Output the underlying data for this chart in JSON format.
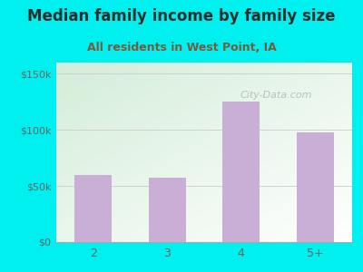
{
  "title": "Median family income by family size",
  "subtitle": "All residents in West Point, IA",
  "categories": [
    "2",
    "3",
    "4",
    "5+"
  ],
  "values": [
    60000,
    57000,
    125000,
    98000
  ],
  "bar_color": "#c9aed6",
  "background_color": "#00efef",
  "yticks": [
    0,
    50000,
    100000,
    150000
  ],
  "ytick_labels": [
    "$0",
    "$50k",
    "$100k",
    "$150k"
  ],
  "ylim": [
    0,
    160000
  ],
  "title_color": "#2d2d2d",
  "subtitle_color": "#7a5a3a",
  "tick_color": "#666666",
  "title_fontsize": 12,
  "subtitle_fontsize": 9,
  "watermark": "City-Data.com"
}
